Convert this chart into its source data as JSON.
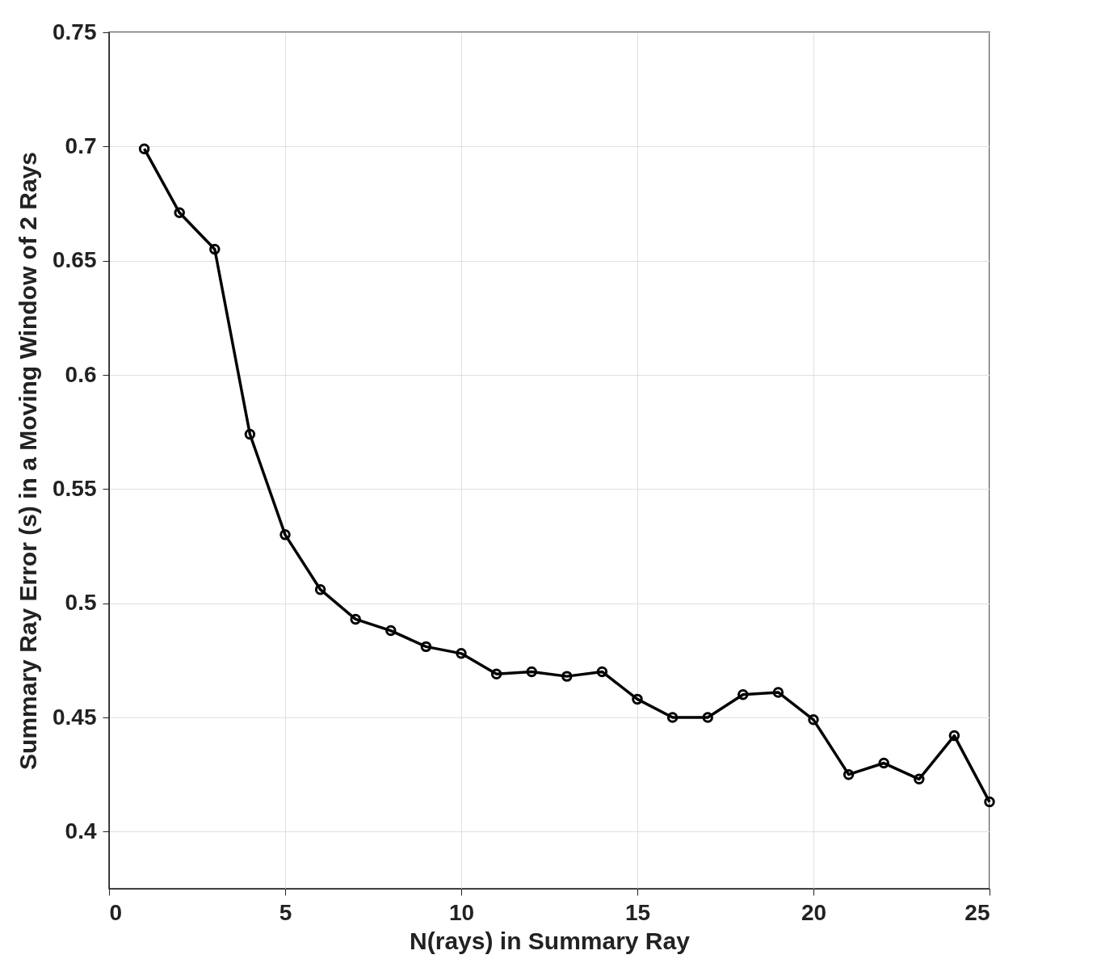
{
  "chart_data": {
    "type": "line",
    "xlabel": "N(rays) in Summary Ray",
    "ylabel": "Summary Ray Error (s) in a Moving Window of 2 Rays",
    "x": [
      1,
      2,
      3,
      4,
      5,
      6,
      7,
      8,
      9,
      10,
      11,
      12,
      13,
      14,
      15,
      16,
      17,
      18,
      19,
      20,
      21,
      22,
      23,
      24,
      25
    ],
    "series": [
      {
        "color": "#000000",
        "values": [
          0.699,
          0.671,
          0.655,
          0.574,
          0.53,
          0.506,
          0.493,
          0.488,
          0.481,
          0.478,
          0.469,
          0.47,
          0.468,
          0.47,
          0.458,
          0.45,
          0.45,
          0.46,
          0.461,
          0.449,
          0.425,
          0.43,
          0.423,
          0.442,
          0.413
        ]
      }
    ],
    "xlim": [
      0,
      25
    ],
    "xticks": [
      0,
      5,
      10,
      15,
      20,
      25
    ],
    "ylim": [
      0.375,
      0.75
    ],
    "yticks": [
      0.4,
      0.45,
      0.5,
      0.55,
      0.6,
      0.65,
      0.7,
      0.75
    ],
    "grid": true,
    "marker": "circle",
    "line_style": "solid"
  }
}
